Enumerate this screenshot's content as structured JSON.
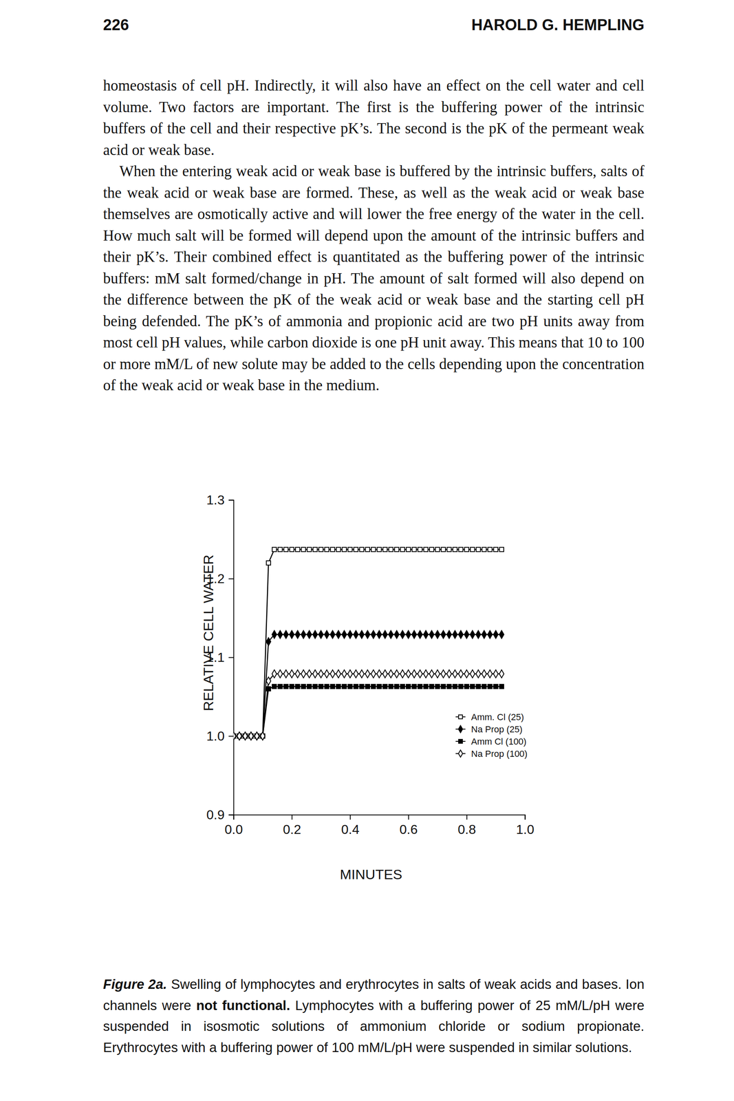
{
  "header": {
    "page_number": "226",
    "author": "HAROLD G. HEMPLING"
  },
  "paragraphs": [
    "homeostasis of cell pH. Indirectly, it will also have an effect on the cell water and cell volume. Two factors are important. The first is the buffering power of the intrinsic buffers of the cell and their respective pK’s. The second is the pK of the permeant weak acid or weak base.",
    "When the entering weak acid or weak base is buffered by the intrinsic buffers, salts of the weak acid or weak base are formed. These, as well as the weak acid or weak base themselves are osmotically active and will lower the free energy of the water in the cell. How much salt will be formed will depend upon the amount of the intrinsic buffers and their pK’s. Their combined effect is quantitated as the buffering power of the intrinsic buffers: mM salt formed/change in pH. The amount of salt formed will also depend on the difference between the pK of the weak acid or weak base and the starting cell pH being defended. The pK’s of ammonia and propionic acid are two pH units away from most cell pH values, while carbon dioxide is one pH unit away. This means that 10 to 100 or more mM/L of new solute may be added to the cells depending upon the concentration of the weak acid or weak base in the medium."
  ],
  "chart_data": {
    "type": "line",
    "xlabel": "MINUTES",
    "ylabel": "RELATIVE CELL WATER",
    "x": [
      0,
      0.02,
      0.04,
      0.06,
      0.08,
      0.1,
      0.12,
      0.14,
      0.16,
      0.18,
      0.2,
      0.22,
      0.24,
      0.26,
      0.28,
      0.3,
      0.32,
      0.34,
      0.36,
      0.38,
      0.4,
      0.42,
      0.44,
      0.46,
      0.48,
      0.5,
      0.52,
      0.54,
      0.56,
      0.58,
      0.6,
      0.62,
      0.64,
      0.66,
      0.68,
      0.7,
      0.72,
      0.74,
      0.76,
      0.78,
      0.8,
      0.82,
      0.84,
      0.86,
      0.88,
      0.9,
      0.92
    ],
    "series": [
      {
        "name": "Amm. Cl (25)",
        "color": "#000000",
        "marker": "square-open",
        "line_style": "solid",
        "values": [
          1,
          1,
          1,
          1,
          1,
          1,
          1.22,
          1.237,
          1.237,
          1.237,
          1.237,
          1.237,
          1.237,
          1.237,
          1.237,
          1.237,
          1.237,
          1.237,
          1.237,
          1.237,
          1.237,
          1.237,
          1.237,
          1.237,
          1.237,
          1.237,
          1.237,
          1.237,
          1.237,
          1.237,
          1.237,
          1.237,
          1.237,
          1.237,
          1.237,
          1.237,
          1.237,
          1.237,
          1.237,
          1.237,
          1.237,
          1.237,
          1.237,
          1.237,
          1.237,
          1.237,
          1.237
        ]
      },
      {
        "name": "Na Prop (25)",
        "color": "#000000",
        "marker": "diamond",
        "line_style": "solid",
        "values": [
          1,
          1,
          1,
          1,
          1,
          1,
          1.12,
          1.129,
          1.129,
          1.129,
          1.129,
          1.129,
          1.129,
          1.129,
          1.129,
          1.129,
          1.129,
          1.129,
          1.129,
          1.129,
          1.129,
          1.129,
          1.129,
          1.129,
          1.129,
          1.129,
          1.129,
          1.129,
          1.129,
          1.129,
          1.129,
          1.129,
          1.129,
          1.129,
          1.129,
          1.129,
          1.129,
          1.129,
          1.129,
          1.129,
          1.129,
          1.129,
          1.129,
          1.129,
          1.129,
          1.129,
          1.129
        ]
      },
      {
        "name": "Amm Cl (100)",
        "color": "#000000",
        "marker": "square",
        "line_style": "solid",
        "values": [
          1,
          1,
          1,
          1,
          1,
          1,
          1.06,
          1.063,
          1.063,
          1.063,
          1.063,
          1.063,
          1.063,
          1.063,
          1.063,
          1.063,
          1.063,
          1.063,
          1.063,
          1.063,
          1.063,
          1.063,
          1.063,
          1.063,
          1.063,
          1.063,
          1.063,
          1.063,
          1.063,
          1.063,
          1.063,
          1.063,
          1.063,
          1.063,
          1.063,
          1.063,
          1.063,
          1.063,
          1.063,
          1.063,
          1.063,
          1.063,
          1.063,
          1.063,
          1.063,
          1.063,
          1.063
        ]
      },
      {
        "name": "Na Prop (100)",
        "color": "#000000",
        "marker": "diamond-open",
        "line_style": "solid",
        "values": [
          1,
          1,
          1,
          1,
          1,
          1,
          1.07,
          1.079,
          1.079,
          1.079,
          1.079,
          1.079,
          1.079,
          1.079,
          1.079,
          1.079,
          1.079,
          1.079,
          1.079,
          1.079,
          1.079,
          1.079,
          1.079,
          1.079,
          1.079,
          1.079,
          1.079,
          1.079,
          1.079,
          1.079,
          1.079,
          1.079,
          1.079,
          1.079,
          1.079,
          1.079,
          1.079,
          1.079,
          1.079,
          1.079,
          1.079,
          1.079,
          1.079,
          1.079,
          1.079,
          1.079,
          1.079
        ]
      }
    ],
    "xlim": [
      0,
      1
    ],
    "ylim": [
      0.9,
      1.3
    ],
    "xticks": [
      {
        "value": 0,
        "label": "0.0"
      },
      0.2,
      0.4,
      0.6,
      0.8,
      {
        "value": 1,
        "label": "1.0"
      }
    ],
    "yticks": [
      0.9,
      {
        "value": 1,
        "label": "1.0"
      },
      1.1,
      1.2,
      1.3
    ],
    "grid": false,
    "legend": "lower right"
  },
  "caption": {
    "label": "Figure 2a.",
    "text": "Swelling of lymphocytes and erythrocytes in salts of weak acids and bases. Ion channels were ",
    "emphasis": "not functional.",
    "text_after": " Lymphocytes with a buffering power of 25 mM/L/pH were suspended in isosmotic solutions of ammonium chloride or sodium propionate. Erythrocytes with a buffering power of 100 mM/L/pH were suspended in similar solutions."
  }
}
